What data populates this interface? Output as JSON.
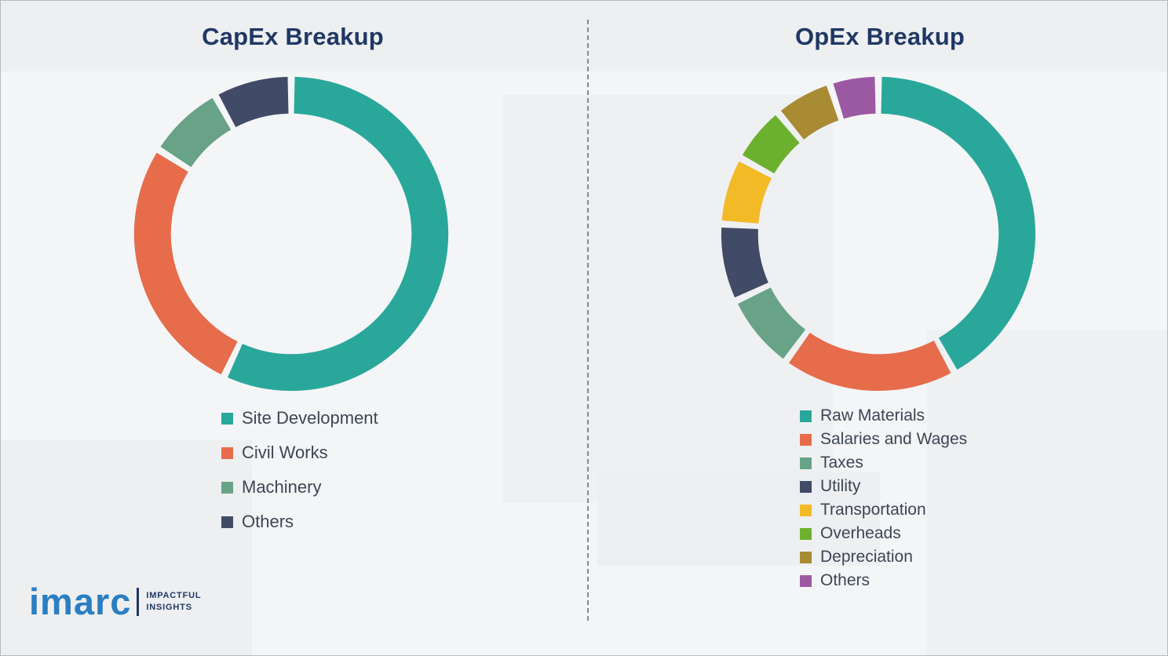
{
  "page": {
    "background_color": "#f4f5f6",
    "divider_style": "vertical-dashed"
  },
  "chart_data": [
    {
      "type": "pie",
      "subtype": "donut",
      "title": "CapEx Breakup",
      "labels": [
        "Site Development",
        "Civil Works",
        "Machinery",
        "Others"
      ],
      "values": [
        57,
        27,
        8,
        8
      ],
      "values_are": "percent, estimated from arc angles (no data labels shown)",
      "colors": [
        "#2AA79B",
        "#E66C4B",
        "#68A387",
        "#414A66"
      ],
      "start_angle": "top",
      "direction": "clockwise",
      "legend_position": "below-chart-left"
    },
    {
      "type": "pie",
      "subtype": "donut",
      "title": "OpEx Breakup",
      "labels": [
        "Raw Materials",
        "Salaries and Wages",
        "Taxes",
        "Utility",
        "Transportation",
        "Overheads",
        "Depreciation",
        "Others"
      ],
      "values": [
        42,
        18,
        8,
        8,
        7,
        6,
        6,
        5
      ],
      "values_are": "percent, estimated from arc angles (no data labels shown)",
      "colors": [
        "#2AA79B",
        "#E66C4B",
        "#68A387",
        "#414A66",
        "#F3BA27",
        "#6CB12E",
        "#A88B33",
        "#9C59A3"
      ],
      "start_angle": "top",
      "direction": "clockwise",
      "legend_position": "below-chart-left"
    }
  ],
  "styles": {
    "title_color": "#1F3864",
    "legend_text_color": "#3C4654"
  },
  "logo": {
    "brand": "imarc",
    "tagline_line1": "IMPACTFUL",
    "tagline_line2": "INSIGHTS",
    "brand_color": "#2B7EC1"
  }
}
